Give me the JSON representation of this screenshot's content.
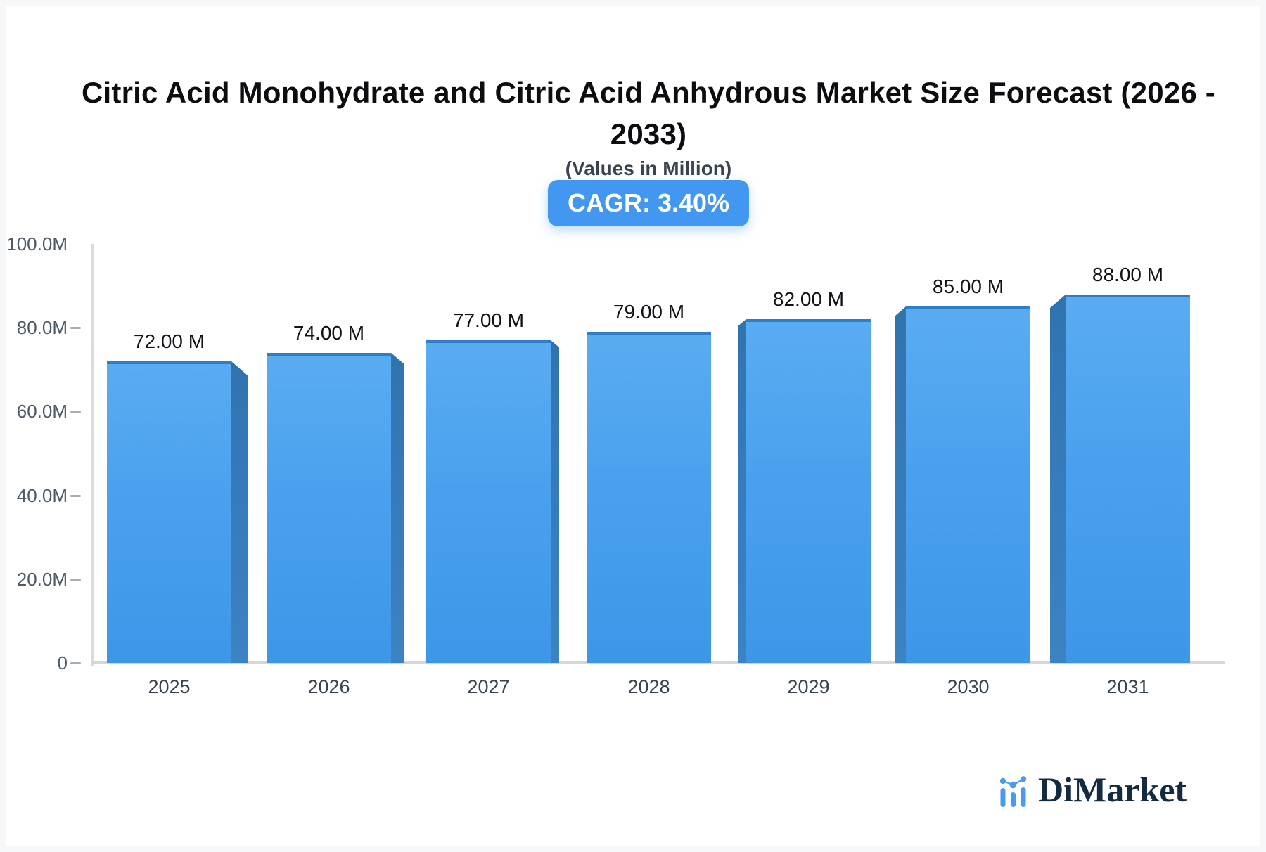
{
  "header": {
    "title": "Citric Acid Monohydrate and Citric Acid Anhydrous Market Size Forecast (2026 - 2033)",
    "subtitle": "(Values in Million)",
    "cagr_badge": "CAGR: 3.40%"
  },
  "footer": {
    "brand": "DiMarket",
    "logo_icon": "bar-line-chart-icon"
  },
  "colors": {
    "bar_front_top": "#5aacf1",
    "bar_front_bottom": "#3e96e9",
    "bar_side": "#3478b8",
    "bar_top_edge": "#2f7ec9",
    "badge_bg": "#4298f0",
    "axis_line": "#d8dbde",
    "logo_blue": "#4a9bf0",
    "logo_text": "#142a40"
  },
  "chart_data": {
    "type": "bar",
    "style": "3d-column",
    "title": "Citric Acid Monohydrate and Citric Acid Anhydrous Market Size Forecast (2026 - 2033)",
    "subtitle": "(Values in Million)",
    "cagr": "CAGR: 3.40%",
    "categories": [
      "2025",
      "2026",
      "2027",
      "2028",
      "2029",
      "2030",
      "2031"
    ],
    "values": [
      72,
      74,
      77,
      79,
      82,
      85,
      88
    ],
    "unit": "Million",
    "value_labels": [
      "72.00 M",
      "74.00 M",
      "77.00 M",
      "79.00 M",
      "82.00 M",
      "85.00 M",
      "88.00 M"
    ],
    "y_ticks": [
      "100.0M",
      "80.0M",
      "60.0M",
      "40.0M",
      "20.0M",
      "0"
    ],
    "ylim": [
      0,
      100
    ],
    "xlabel": "",
    "ylabel": "",
    "grid": false,
    "legend": false,
    "bar_color": "#469ded"
  }
}
